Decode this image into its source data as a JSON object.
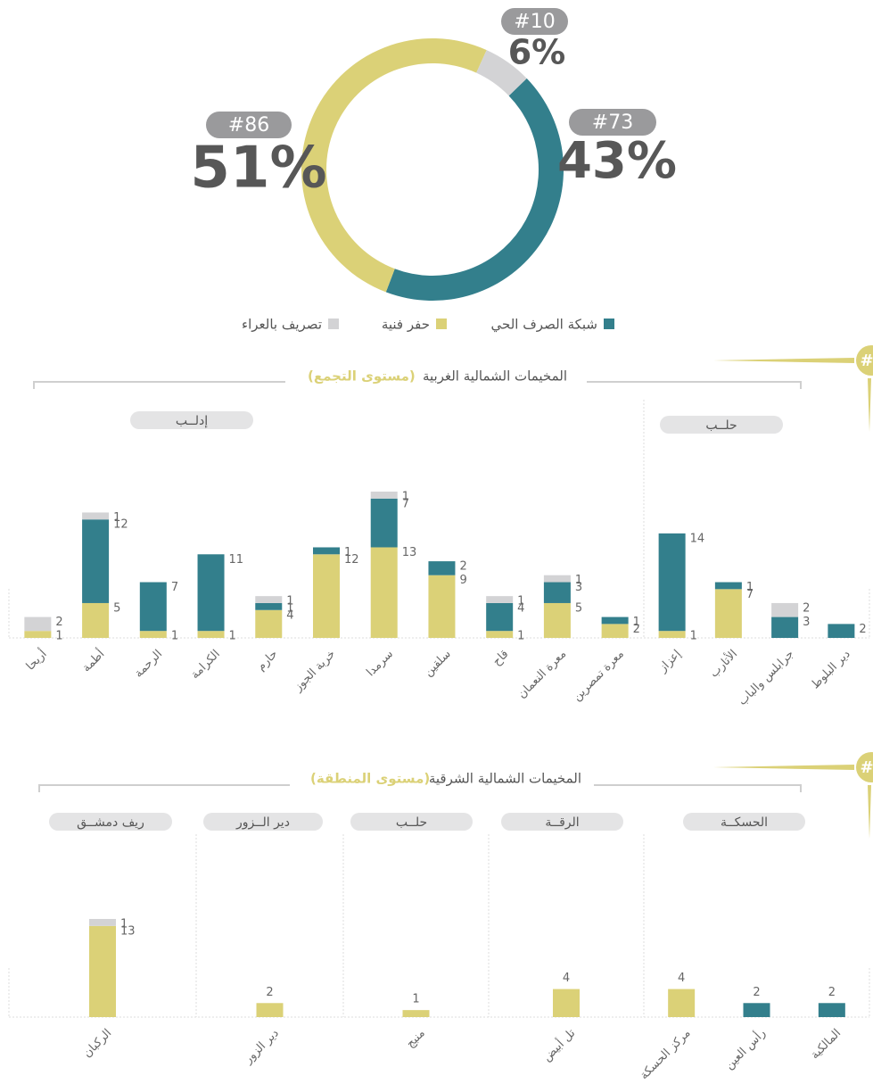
{
  "chart_data": [
    {
      "type": "pie",
      "categories": [
        "شبكة الصرف الحي",
        "حفر فنية",
        "تصريف بالعراء"
      ],
      "values": [
        43,
        51,
        6
      ],
      "value_labels": [
        "43%",
        "51%",
        "6%"
      ],
      "counts": [
        73,
        86,
        10
      ],
      "count_labels": [
        "#73",
        "#86",
        "#10"
      ],
      "colors": [
        "#337f8c",
        "#dbd177",
        "#d3d3d5"
      ],
      "legend": "bottom"
    },
    {
      "type": "bar",
      "title": "المخيمات الشمالية الغربية",
      "subtitle": "(مستوى التجمع)",
      "marker": "#",
      "groups": [
        {
          "label": "إدلــب",
          "categories": [
            "أريحا",
            "أطمة",
            "الرحمة",
            "الكرامة",
            "حارم",
            "خربة الجوز",
            "سرمدا",
            "سلقين",
            "قاح",
            "معرة النعمان",
            "معرة تمصرين"
          ]
        },
        {
          "label": "حلــب",
          "categories": [
            "إعزاز",
            "الأتارب",
            "جرابلس والباب",
            "دير البلوط"
          ]
        }
      ],
      "series": [
        {
          "color": "#dbd177",
          "values": [
            1,
            5,
            1,
            1,
            4,
            12,
            13,
            9,
            1,
            5,
            2,
            1,
            7,
            null,
            null
          ]
        },
        {
          "color": "#337f8c",
          "values": [
            null,
            12,
            7,
            11,
            1,
            1,
            7,
            2,
            4,
            3,
            1,
            14,
            1,
            3,
            2
          ]
        },
        {
          "color": "#d3d3d5",
          "values": [
            2,
            1,
            null,
            null,
            1,
            null,
            1,
            null,
            1,
            1,
            null,
            null,
            null,
            2,
            null
          ]
        }
      ],
      "stacked": true,
      "value_label_position": "right",
      "ylim": [
        0,
        21
      ]
    },
    {
      "type": "bar",
      "title": "المخيمات الشمالية الشرقية",
      "subtitle": "(مستوى المنطقة)",
      "marker": "#",
      "groups": [
        {
          "label": "ريف دمشــق",
          "categories": [
            "الركبان"
          ]
        },
        {
          "label": "دير الــزور",
          "categories": [
            "دير الزور"
          ]
        },
        {
          "label": "حلــب",
          "categories": [
            "منبج"
          ]
        },
        {
          "label": "الرقــة",
          "categories": [
            "تل أبيض"
          ]
        },
        {
          "label": "الحسكــة",
          "categories": [
            "مركز الحسكة",
            "رأس العين",
            "المالكية"
          ]
        }
      ],
      "series": [
        {
          "color": "#dbd177",
          "values": [
            13,
            2,
            1,
            4,
            4,
            null,
            null
          ]
        },
        {
          "color": "#337f8c",
          "values": [
            null,
            null,
            null,
            null,
            null,
            2,
            2
          ]
        },
        {
          "color": "#d3d3d5",
          "values": [
            1,
            null,
            null,
            null,
            null,
            null,
            null
          ]
        }
      ],
      "stacked": true,
      "value_label_position": "above",
      "ylim": [
        0,
        21
      ]
    }
  ]
}
